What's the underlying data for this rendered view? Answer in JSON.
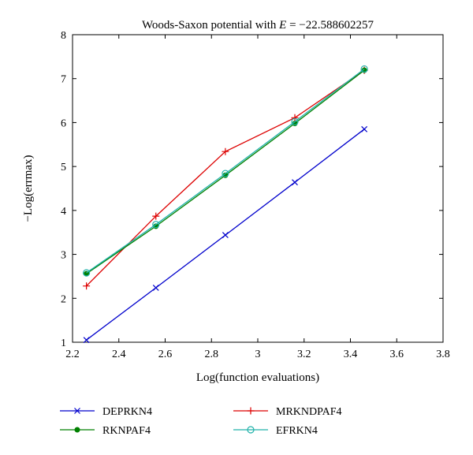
{
  "chart_data": {
    "type": "line",
    "title_prefix": "Woods-Saxon potential with ",
    "title_var": "E",
    "title_suffix": " = −22.588602257",
    "xlabel": "Log(function evaluations)",
    "ylabel": "−Log(errmax)",
    "xlim": [
      2.2,
      3.8
    ],
    "ylim": [
      1,
      8
    ],
    "xticks": [
      2.2,
      2.4,
      2.6,
      2.8,
      3.0,
      3.2,
      3.4,
      3.6,
      3.8
    ],
    "xtick_labels": [
      "2.2",
      "2.4",
      "2.6",
      "2.8",
      "3",
      "3.2",
      "3.4",
      "3.6",
      "3.8"
    ],
    "yticks": [
      1,
      2,
      3,
      4,
      5,
      6,
      7,
      8
    ],
    "ytick_labels": [
      "1",
      "2",
      "3",
      "4",
      "5",
      "6",
      "7",
      "8"
    ],
    "grid": false,
    "legend_placement": "bottom",
    "series": [
      {
        "name": "DEPRKN4",
        "color": "#0000cc",
        "marker": "x",
        "x": [
          2.26,
          2.56,
          2.86,
          3.16,
          3.46
        ],
        "y": [
          1.05,
          2.24,
          3.44,
          4.64,
          5.85
        ]
      },
      {
        "name": "MRKNDPAF4",
        "color": "#dd0000",
        "marker": "plus",
        "x": [
          2.26,
          2.56,
          2.86,
          3.16,
          3.46
        ],
        "y": [
          2.28,
          3.87,
          5.34,
          6.11,
          7.19
        ]
      },
      {
        "name": "RKNPAF4",
        "color": "#008000",
        "marker": "dot",
        "x": [
          2.26,
          2.56,
          2.86,
          3.16,
          3.46
        ],
        "y": [
          2.56,
          3.64,
          4.8,
          5.98,
          7.19
        ]
      },
      {
        "name": "EFRKN4",
        "color": "#20b2aa",
        "marker": "circle",
        "x": [
          2.26,
          2.56,
          2.86,
          3.16,
          3.46
        ],
        "y": [
          2.58,
          3.68,
          4.84,
          6.02,
          7.22
        ]
      }
    ]
  }
}
